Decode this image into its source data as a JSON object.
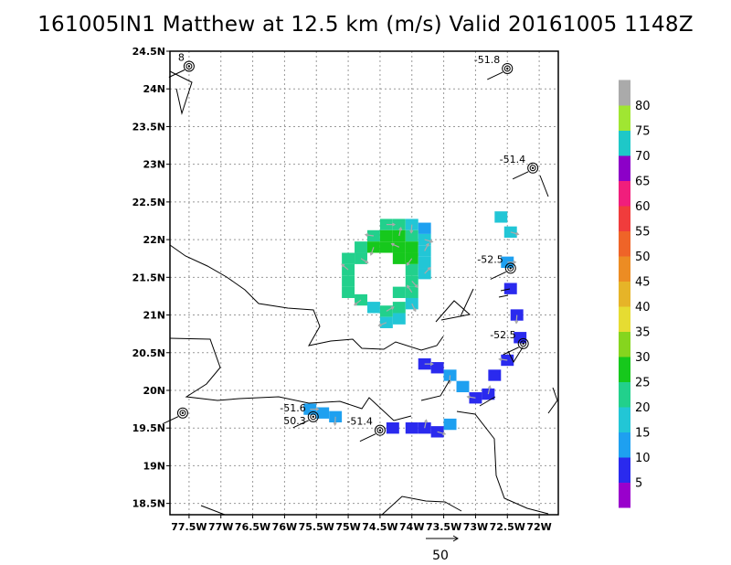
{
  "title": "161005IN1 Matthew at 12.5 km (m/s) Valid 20161005 1148Z",
  "chart_data": {
    "type": "heatmap",
    "title": "161005IN1 Matthew at 12.5 km (m/s) Valid 20161005 1148Z",
    "x_ticks": [
      "77.5W",
      "77W",
      "76.5W",
      "76W",
      "75.5W",
      "75W",
      "74.5W",
      "74W",
      "73.5W",
      "73W",
      "72.5W",
      "72W"
    ],
    "y_ticks": [
      "24.5N",
      "24N",
      "23.5N",
      "23N",
      "22.5N",
      "22N",
      "21.5N",
      "21N",
      "20.5N",
      "20N",
      "19.5N",
      "19N",
      "18.5N"
    ],
    "xlim": [
      -77.8,
      -71.7
    ],
    "ylim": [
      18.35,
      24.5
    ],
    "grid": true,
    "colorbar": {
      "labels": [
        "5",
        "10",
        "15",
        "20",
        "25",
        "30",
        "35",
        "40",
        "45",
        "50",
        "55",
        "60",
        "65",
        "70",
        "75",
        "80"
      ],
      "colors": [
        "#9900cc",
        "#2a2aee",
        "#1ea0f0",
        "#22c6d6",
        "#22d08c",
        "#16c81c",
        "#86d51e",
        "#e6dc32",
        "#e6b428",
        "#ec8c23",
        "#ef6428",
        "#f03c3c",
        "#f01e7c",
        "#8c00c8",
        "#1ec8c8",
        "#a0e632",
        "#aaaaaa"
      ]
    },
    "reference_vector": {
      "label": "50",
      "value": 50
    },
    "observations": [
      {
        "label": "8",
        "lon": -77.5,
        "lat": 24.3
      },
      {
        "label": "-51.8",
        "lon": -72.5,
        "lat": 24.27
      },
      {
        "label": "-51.4",
        "lon": -72.1,
        "lat": 22.95
      },
      {
        "label": "-52.5",
        "lon": -72.45,
        "lat": 21.62
      },
      {
        "label": "-52.5",
        "lon": -72.25,
        "lat": 20.62
      },
      {
        "label": "-51.6",
        "lon": -75.55,
        "lat": 19.65
      },
      {
        "label": "50.3",
        "lon": -75.55,
        "lat": 19.65
      },
      {
        "label": "-51.4",
        "lon": -74.5,
        "lat": 19.47
      },
      {
        "label": "",
        "lon": -77.6,
        "lat": 19.7
      }
    ],
    "wind_regions": [
      {
        "name": "eyewall-ring",
        "value": 20,
        "cells": [
          [
            -74.4,
            22.2,
            20
          ],
          [
            -74.2,
            22.2,
            20
          ],
          [
            -74.0,
            22.2,
            15
          ],
          [
            -73.8,
            22.15,
            10
          ],
          [
            -74.6,
            22.05,
            20
          ],
          [
            -74.4,
            22.05,
            25
          ],
          [
            -74.2,
            22.05,
            25
          ],
          [
            -74.0,
            22.05,
            20
          ],
          [
            -73.8,
            22.0,
            15
          ],
          [
            -74.8,
            21.9,
            20
          ],
          [
            -74.6,
            21.9,
            25
          ],
          [
            -74.4,
            21.9,
            25
          ],
          [
            -74.2,
            21.9,
            25
          ],
          [
            -74.0,
            21.9,
            25
          ],
          [
            -73.8,
            21.85,
            15
          ],
          [
            -75.0,
            21.75,
            20
          ],
          [
            -74.8,
            21.75,
            20
          ],
          [
            -74.2,
            21.75,
            25
          ],
          [
            -74.0,
            21.75,
            25
          ],
          [
            -73.8,
            21.7,
            15
          ],
          [
            -75.0,
            21.6,
            20
          ],
          [
            -74.0,
            21.6,
            20
          ],
          [
            -73.8,
            21.55,
            15
          ],
          [
            -75.0,
            21.45,
            20
          ],
          [
            -74.0,
            21.45,
            20
          ],
          [
            -75.0,
            21.3,
            20
          ],
          [
            -74.8,
            21.2,
            20
          ],
          [
            -74.2,
            21.3,
            20
          ],
          [
            -74.0,
            21.3,
            20
          ],
          [
            -74.6,
            21.1,
            15
          ],
          [
            -74.4,
            21.05,
            20
          ],
          [
            -74.2,
            21.1,
            20
          ],
          [
            -74.0,
            21.15,
            15
          ],
          [
            -74.2,
            20.95,
            15
          ],
          [
            -74.4,
            20.9,
            15
          ]
        ]
      },
      {
        "name": "southern-rainband",
        "value": 5,
        "cells": [
          [
            -73.8,
            20.35,
            5
          ],
          [
            -73.6,
            20.3,
            5
          ],
          [
            -73.4,
            20.2,
            10
          ],
          [
            -73.2,
            20.05,
            10
          ],
          [
            -73.0,
            19.9,
            5
          ],
          [
            -74.0,
            19.5,
            5
          ],
          [
            -73.8,
            19.5,
            5
          ],
          [
            -73.4,
            19.55,
            10
          ],
          [
            -73.6,
            19.45,
            5
          ],
          [
            -74.3,
            19.5,
            5
          ]
        ]
      },
      {
        "name": "eastern-rainband",
        "value": 5,
        "cells": [
          [
            -72.5,
            21.7,
            10
          ],
          [
            -72.45,
            21.35,
            5
          ],
          [
            -72.35,
            21.0,
            5
          ],
          [
            -72.3,
            20.7,
            5
          ],
          [
            -72.5,
            20.4,
            5
          ],
          [
            -72.7,
            20.2,
            5
          ],
          [
            -72.8,
            19.95,
            5
          ],
          [
            -72.6,
            22.3,
            15
          ],
          [
            -72.45,
            22.1,
            15
          ]
        ]
      },
      {
        "name": "southwest-band",
        "value": 10,
        "cells": [
          [
            -75.6,
            19.75,
            10
          ],
          [
            -75.4,
            19.7,
            10
          ],
          [
            -75.2,
            19.65,
            10
          ]
        ]
      }
    ]
  },
  "colors": {
    "axis": "#000000",
    "grid": "#999999",
    "coast": "#000000",
    "wind_arrow": "#aaaaaa"
  }
}
